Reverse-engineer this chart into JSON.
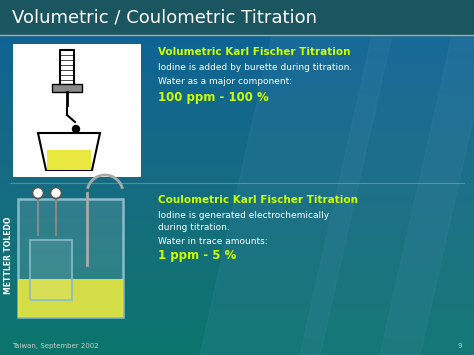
{
  "title": "Volumetric / Coulometric Titration",
  "title_color": "#ffffff",
  "title_fontsize": 13,
  "vol_heading": "Volumetric Karl Fischer Titration",
  "vol_line1": "Iodine is added by burette during titration.",
  "vol_line2": "Water as a major component:",
  "vol_highlight": "100 ppm - 100 %",
  "coul_heading": "Coulometric Karl Fischer Titration",
  "coul_line1": "Iodine is generated electrochemically",
  "coul_line2": "during titration.",
  "coul_line3": "Water in trace amounts:",
  "coul_highlight": "1 ppm - 5 %",
  "heading_color": "#ccff00",
  "text_color": "#ffffff",
  "highlight_color": "#ccff00",
  "footer_text": "Taiwan, September 2002",
  "footer_page": "9",
  "brand_text": "METTLER TOLEDO",
  "brand_color": "#ffffff",
  "header_line_color": "#aaaaaa",
  "divider_color": "#aaaaaa"
}
